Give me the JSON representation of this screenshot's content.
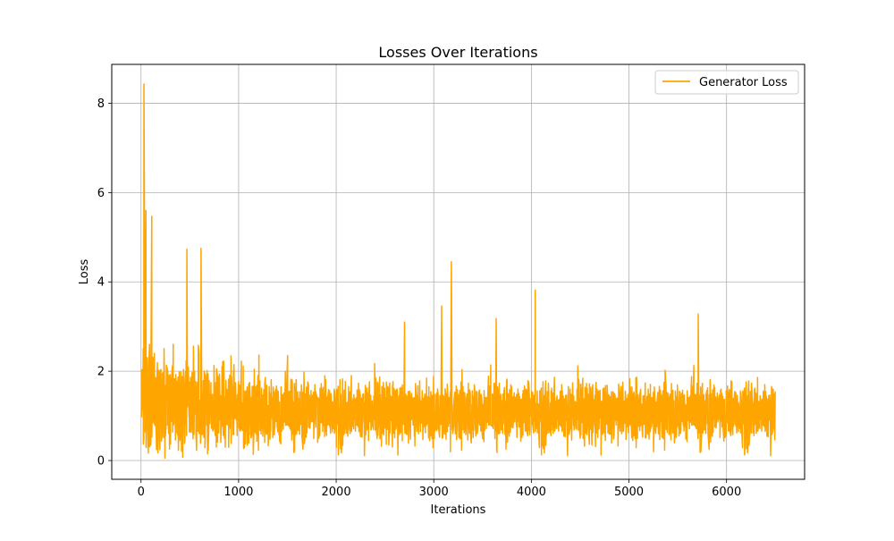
{
  "chart_data": {
    "type": "line",
    "title": "Losses Over Iterations",
    "xlabel": "Iterations",
    "ylabel": "Loss",
    "xlim": [
      -300,
      6800
    ],
    "ylim": [
      -0.42,
      8.87
    ],
    "xticks": [
      0,
      1000,
      2000,
      3000,
      4000,
      5000,
      6000
    ],
    "yticks": [
      0,
      2,
      4,
      6,
      8
    ],
    "grid": true,
    "legend_position": "top-right",
    "series": [
      {
        "name": "Generator Loss",
        "color": "#ffa500",
        "n_points": 6500,
        "x_range": [
          0,
          6500
        ],
        "typical_band": [
          0.5,
          2.0
        ],
        "min": 0.05,
        "max": 8.43,
        "peaks": [
          {
            "x": 30,
            "y": 8.43
          },
          {
            "x": 50,
            "y": 5.6
          },
          {
            "x": 110,
            "y": 5.47
          },
          {
            "x": 470,
            "y": 4.73
          },
          {
            "x": 615,
            "y": 4.75
          },
          {
            "x": 3180,
            "y": 4.45
          },
          {
            "x": 4040,
            "y": 3.82
          },
          {
            "x": 3080,
            "y": 3.46
          },
          {
            "x": 5710,
            "y": 3.28
          },
          {
            "x": 3640,
            "y": 3.18
          },
          {
            "x": 2700,
            "y": 3.1
          }
        ]
      }
    ]
  }
}
